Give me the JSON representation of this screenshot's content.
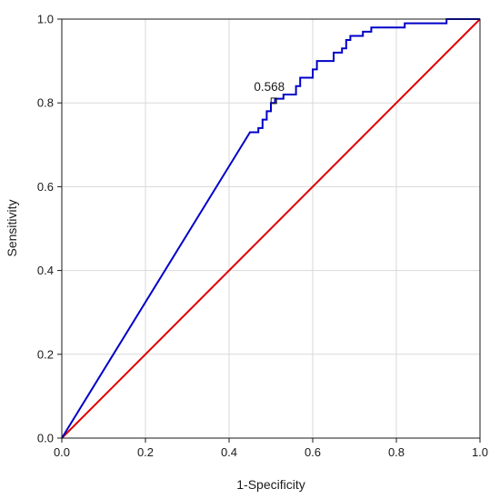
{
  "chart_data": {
    "type": "line",
    "title": "",
    "xlabel": "1-Specificity",
    "ylabel": "Sensitivity",
    "xlim": [
      0,
      1
    ],
    "ylim": [
      0,
      1
    ],
    "xticks": [
      "0.0",
      "0.2",
      "0.4",
      "0.6",
      "0.8",
      "1.0"
    ],
    "yticks": [
      "0.0",
      "0.2",
      "0.4",
      "0.6",
      "0.8",
      "1.0"
    ],
    "grid": true,
    "legend": "none",
    "series": [
      {
        "color": "#0000c8",
        "x": [
          0,
          0.45,
          0.47,
          0.47,
          0.48,
          0.48,
          0.49,
          0.49,
          0.5,
          0.5,
          0.51,
          0.51,
          0.52,
          0.53,
          0.53,
          0.55,
          0.56,
          0.56,
          0.57,
          0.57,
          0.6,
          0.6,
          0.61,
          0.61,
          0.65,
          0.65,
          0.67,
          0.67,
          0.68,
          0.68,
          0.69,
          0.69,
          0.72,
          0.72,
          0.74,
          0.74,
          0.82,
          0.82,
          0.92,
          0.92,
          1.0
        ],
        "y": [
          0,
          0.73,
          0.73,
          0.74,
          0.74,
          0.76,
          0.76,
          0.78,
          0.78,
          0.8,
          0.8,
          0.81,
          0.81,
          0.81,
          0.82,
          0.82,
          0.82,
          0.84,
          0.84,
          0.86,
          0.86,
          0.88,
          0.88,
          0.9,
          0.9,
          0.92,
          0.92,
          0.93,
          0.93,
          0.95,
          0.95,
          0.96,
          0.96,
          0.97,
          0.97,
          0.98,
          0.98,
          0.99,
          0.99,
          1.0,
          1.0
        ]
      },
      {
        "color": "#e00000",
        "x": [
          0,
          1
        ],
        "y": [
          0,
          1
        ]
      }
    ],
    "annotations": [
      {
        "text": "0.568",
        "x": 0.507,
        "y": 0.805
      }
    ]
  }
}
